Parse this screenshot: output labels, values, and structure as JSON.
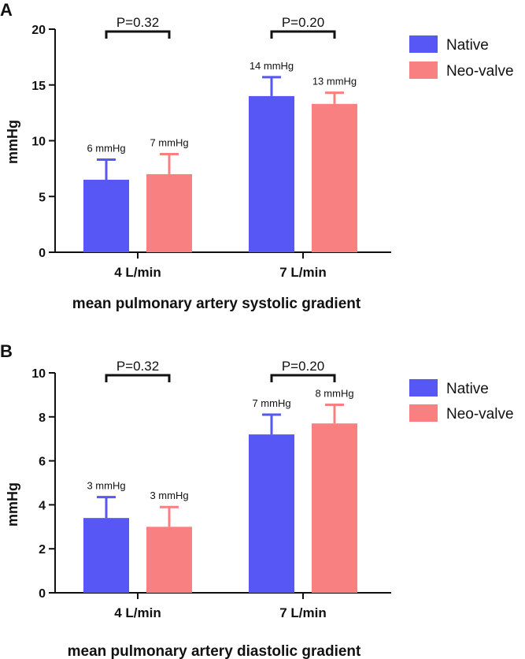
{
  "colors": {
    "native": "#5757f5",
    "neo_valve": "#f98080",
    "axis": "#111111"
  },
  "legend": {
    "native": "Native",
    "neo_valve": "Neo-valve"
  },
  "chart_data": [
    {
      "panel": "A",
      "type": "bar",
      "title": "mean pulmonary artery systolic gradient",
      "ylabel": "mmHg",
      "xlabel": "mean pulmonary artery systolic gradient",
      "ylim": [
        0,
        20
      ],
      "yticks": [
        0,
        5,
        10,
        15,
        20
      ],
      "categories": [
        "4 L/min",
        "7 L/min"
      ],
      "series": [
        {
          "name": "Native",
          "values": [
            6.5,
            14.0
          ],
          "errors": [
            1.8,
            1.7
          ],
          "labels": [
            "6 mmHg",
            "14 mmHg"
          ]
        },
        {
          "name": "Neo-valve",
          "values": [
            7.0,
            13.3
          ],
          "errors": [
            1.8,
            1.0
          ],
          "labels": [
            "7 mmHg",
            "13 mmHg"
          ]
        }
      ],
      "pvalues": [
        "P=0.32",
        "P=0.20"
      ]
    },
    {
      "panel": "B",
      "type": "bar",
      "title": "mean pulmonary artery diastolic gradient",
      "ylabel": "mmHg",
      "xlabel": "mean pulmonary artery diastolic gradient",
      "ylim": [
        0,
        10
      ],
      "yticks": [
        0,
        2,
        4,
        6,
        8,
        10
      ],
      "categories": [
        "4 L/min",
        "7 L/min"
      ],
      "series": [
        {
          "name": "Native",
          "values": [
            3.4,
            7.2
          ],
          "errors": [
            0.95,
            0.9
          ],
          "labels": [
            "3 mmHg",
            "7 mmHg"
          ]
        },
        {
          "name": "Neo-valve",
          "values": [
            3.0,
            7.7
          ],
          "errors": [
            0.9,
            0.85
          ],
          "labels": [
            "3 mmHg",
            "8 mmHg"
          ]
        }
      ],
      "pvalues": [
        "P=0.32",
        "P=0.20"
      ]
    }
  ]
}
